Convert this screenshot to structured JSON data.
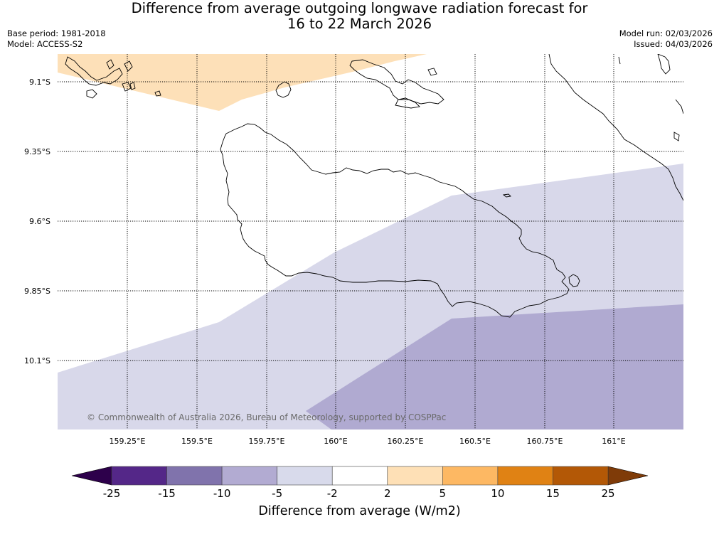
{
  "title": {
    "line1": "Difference from average outgoing longwave radiation forecast for",
    "line2": "16 to 22 March 2026"
  },
  "meta": {
    "base_period": "Base period: 1981-2018",
    "model": "Model: ACCESS-S2",
    "model_run": "Model run: 02/03/2026",
    "issued": "Issued: 04/03/2026"
  },
  "map": {
    "lon_labels": [
      "159.25°E",
      "159.5°E",
      "159.75°E",
      "160°E",
      "160.25°E",
      "160.5°E",
      "160.75°E",
      "161°E"
    ],
    "lat_labels": [
      "9.1°S",
      "9.35°S",
      "9.6°S",
      "9.85°S",
      "10.1°S"
    ],
    "regions": [
      {
        "name": "2 to 5",
        "color": "#fde0b8"
      },
      {
        "name": "-5 to -2",
        "color": "#d8d8ea"
      },
      {
        "name": "-10 to -5",
        "color": "#b0aad1"
      }
    ]
  },
  "credit": "© Commonwealth of Australia 2026, Bureau of Meteorology, supported by COSPPac",
  "colorbar": {
    "title": "Difference from average (W/m2)",
    "ticks": [
      "-25",
      "-15",
      "-10",
      "-5",
      "-2",
      "2",
      "5",
      "10",
      "15",
      "25"
    ],
    "colors": [
      "#542788",
      "#8073ac",
      "#b2abd2",
      "#d8daeb",
      "#ffffff",
      "#fee0b6",
      "#fdb863",
      "#e08214",
      "#b35806"
    ],
    "under_color": "#2d004b",
    "over_color": "#7f3b08"
  }
}
